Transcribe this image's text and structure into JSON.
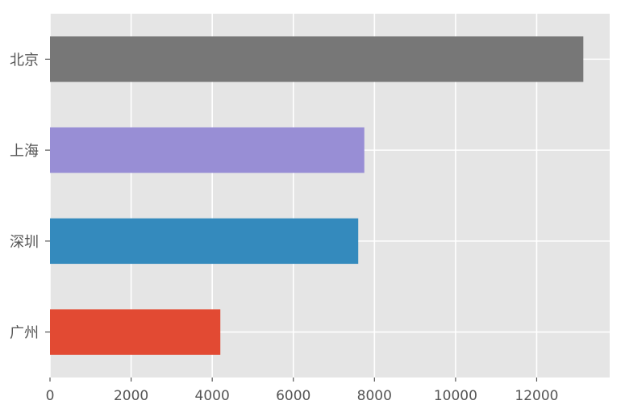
{
  "chart_data": {
    "type": "bar",
    "orientation": "horizontal",
    "categories": [
      "广州",
      "深圳",
      "上海",
      "北京"
    ],
    "values": [
      4200,
      7600,
      7750,
      13150
    ],
    "colors": [
      "#E24A33",
      "#348ABD",
      "#988ED5",
      "#777777"
    ],
    "x_ticks": [
      "0",
      "2000",
      "4000",
      "6000",
      "8000",
      "10000",
      "12000"
    ],
    "tick_values": [
      0,
      2000,
      4000,
      6000,
      8000,
      10000,
      12000
    ],
    "xlim": [
      0,
      13800
    ],
    "grid": true,
    "background": "#E5E5E5",
    "title": "",
    "xlabel": "",
    "ylabel": ""
  }
}
